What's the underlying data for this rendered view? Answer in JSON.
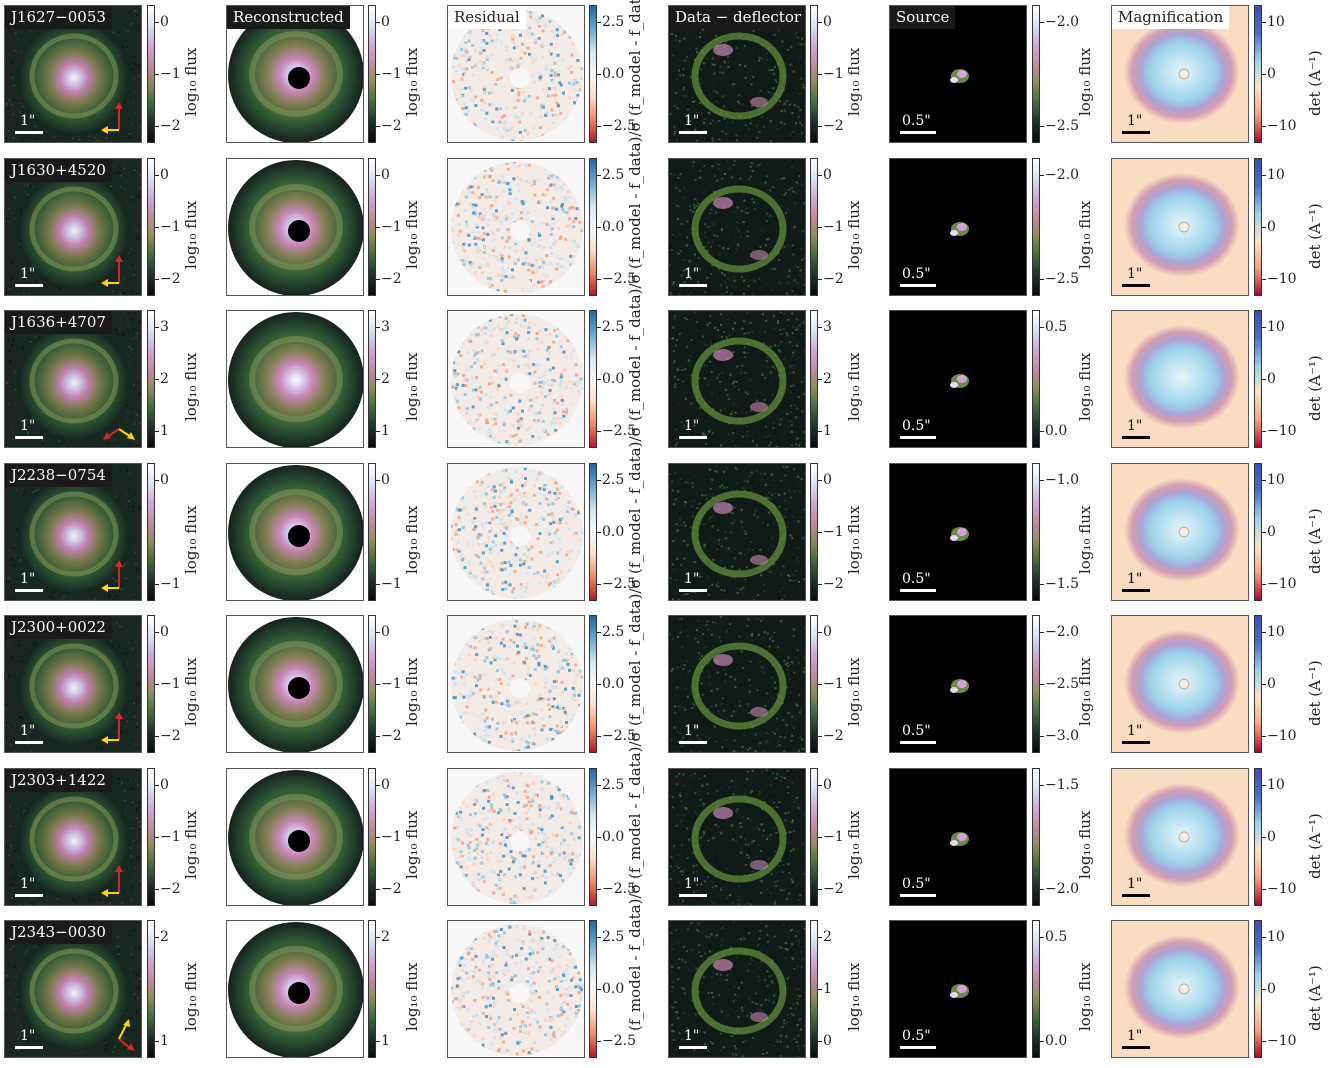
{
  "columns": [
    {
      "title": "",
      "type": "data"
    },
    {
      "title": "Reconstructed",
      "type": "model"
    },
    {
      "title": "Residual",
      "type": "residual"
    },
    {
      "title": "Data − deflector",
      "type": "arc"
    },
    {
      "title": "Source",
      "type": "source"
    },
    {
      "title": "Magnification",
      "type": "mag"
    }
  ],
  "labels": {
    "log_flux": "log₁₀ flux",
    "residual": "(f_model - f_data)/σ",
    "det": "det (A⁻¹)",
    "scale_1": "1\"",
    "scale_05": "0.5\""
  },
  "residual_ticks": [
    "2.5",
    "0.0",
    "−2.5"
  ],
  "mag_ticks": [
    "10",
    "0",
    "−10"
  ],
  "colors": {
    "cubehelix": [
      "#0a0a12",
      "#1e2f2a",
      "#3f6a3a",
      "#8a8c56",
      "#c48aa0",
      "#cfa8da",
      "#d6e4f4",
      "#ffffff"
    ],
    "rdbu": [
      "#b2182b",
      "#ef8a62",
      "#fddbc7",
      "#f7f7f7",
      "#d1e5f0",
      "#67a9cf",
      "#2166ac"
    ],
    "mag": [
      "#b40426",
      "#f4a582",
      "#f9e3c8",
      "#9bd3ea",
      "#4a6fd0",
      "#3b4cc0"
    ],
    "north_arrow": "#d62728",
    "east_arrow": "#ffd400"
  },
  "rows": [
    {
      "name": "J1627−0053",
      "data_ticks": [
        "0",
        "−1",
        "−2"
      ],
      "arc_ticks": [
        "0",
        "−1",
        "−2"
      ],
      "src_ticks": [
        "−2.0",
        "−2.5"
      ],
      "compass": "up-left",
      "hole": true
    },
    {
      "name": "J1630+4520",
      "data_ticks": [
        "0",
        "−1",
        "−2"
      ],
      "arc_ticks": [
        "0",
        "−1",
        "−2"
      ],
      "src_ticks": [
        "−2.0",
        "−2.5"
      ],
      "compass": "up-left",
      "hole": true
    },
    {
      "name": "J1636+4707",
      "data_ticks": [
        "3",
        "2",
        "1"
      ],
      "arc_ticks": [
        "3",
        "2",
        "1"
      ],
      "src_ticks": [
        "0.5",
        "0.0"
      ],
      "compass": "diag",
      "hole": false
    },
    {
      "name": "J2238−0754",
      "data_ticks": [
        "0",
        "−1"
      ],
      "arc_ticks": [
        "0",
        "−1",
        "−2"
      ],
      "src_ticks": [
        "−1.0",
        "−1.5"
      ],
      "compass": "up-left",
      "hole": true
    },
    {
      "name": "J2300+0022",
      "data_ticks": [
        "0",
        "−1",
        "−2"
      ],
      "arc_ticks": [
        "0",
        "−1",
        "−2"
      ],
      "src_ticks": [
        "−2.0",
        "−2.5",
        "−3.0"
      ],
      "compass": "up-left",
      "hole": true
    },
    {
      "name": "J2303+1422",
      "data_ticks": [
        "0",
        "−1",
        "−2"
      ],
      "arc_ticks": [
        "0",
        "−1",
        "−2"
      ],
      "src_ticks": [
        "−1.5",
        "−2.0"
      ],
      "compass": "up-left",
      "hole": true
    },
    {
      "name": "J2343−0030",
      "data_ticks": [
        "2",
        "1"
      ],
      "arc_ticks": [
        "2",
        "1",
        "0"
      ],
      "src_ticks": [
        "0.5",
        "0.0"
      ],
      "compass": "diag2",
      "hole": true
    }
  ]
}
